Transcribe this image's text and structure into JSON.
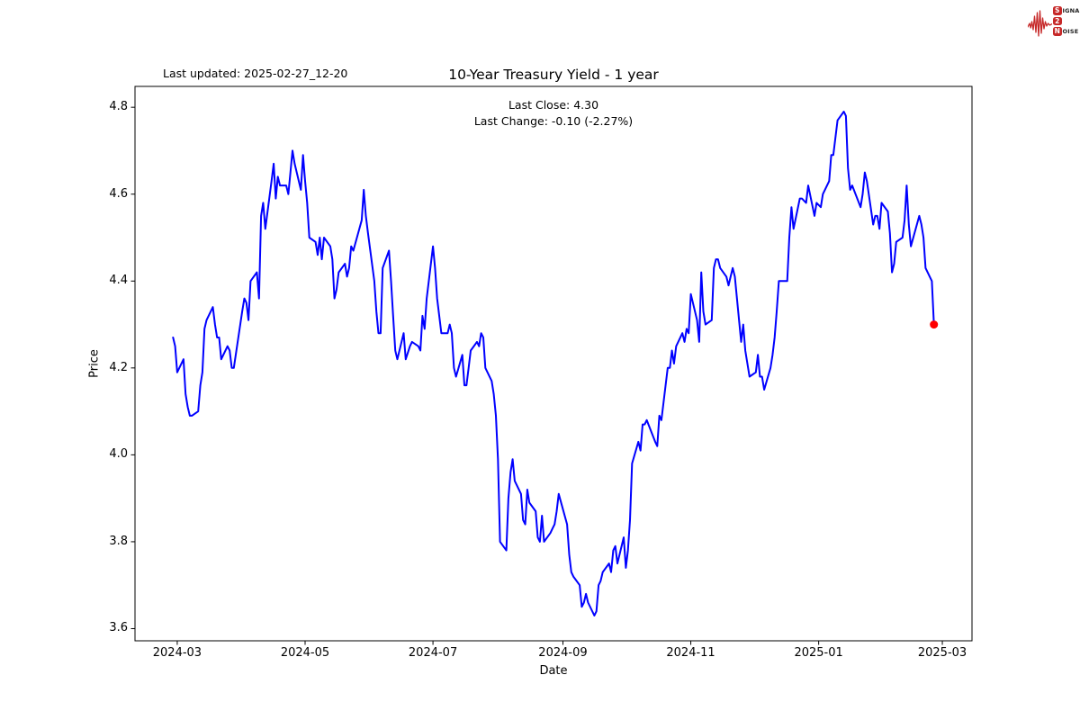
{
  "header": {
    "last_updated": "Last updated: 2025-02-27_12-20",
    "title": "10-Year Treasury Yield - 1 year",
    "subtitle_line1": "Last Close: 4.30",
    "subtitle_line2": "Last Change: -0.10 (-2.27%)"
  },
  "logo": {
    "word1_initial": "S",
    "word1_rest": "IGNAL",
    "word2": "2",
    "word3_initial": "N",
    "word3_rest": "OISE",
    "accent_color": "#c62828"
  },
  "chart_data": {
    "type": "line",
    "title": "10-Year Treasury Yield - 1 year",
    "xlabel": "Date",
    "ylabel": "Price",
    "grid": false,
    "legend": null,
    "line_color": "#0000ff",
    "line_width": 2,
    "last_point_color": "#ff0000",
    "last_close": 4.3,
    "last_change": "-0.10 (-2.27%)",
    "ylim": [
      3.57,
      4.85
    ],
    "xlim": [
      "2024-02-10",
      "2025-03-15"
    ],
    "yticks": [
      3.6,
      3.8,
      4.0,
      4.2,
      4.4,
      4.6,
      4.8
    ],
    "ytick_labels": [
      "3.6",
      "3.8",
      "4.0",
      "4.2",
      "4.4",
      "4.6",
      "4.8"
    ],
    "xticks": [
      {
        "label": "2024-03",
        "date": "2024-03-01"
      },
      {
        "label": "2024-05",
        "date": "2024-05-01"
      },
      {
        "label": "2024-07",
        "date": "2024-07-01"
      },
      {
        "label": "2024-09",
        "date": "2024-09-01"
      },
      {
        "label": "2024-11",
        "date": "2024-11-01"
      },
      {
        "label": "2025-01",
        "date": "2025-01-01"
      },
      {
        "label": "2025-03",
        "date": "2025-03-01"
      }
    ],
    "points": [
      [
        "2024-02-28",
        4.27
      ],
      [
        "2024-02-29",
        4.25
      ],
      [
        "2024-03-01",
        4.19
      ],
      [
        "2024-03-04",
        4.22
      ],
      [
        "2024-03-05",
        4.14
      ],
      [
        "2024-03-06",
        4.11
      ],
      [
        "2024-03-07",
        4.09
      ],
      [
        "2024-03-08",
        4.09
      ],
      [
        "2024-03-11",
        4.1
      ],
      [
        "2024-03-12",
        4.16
      ],
      [
        "2024-03-13",
        4.19
      ],
      [
        "2024-03-14",
        4.29
      ],
      [
        "2024-03-15",
        4.31
      ],
      [
        "2024-03-18",
        4.34
      ],
      [
        "2024-03-19",
        4.3
      ],
      [
        "2024-03-20",
        4.27
      ],
      [
        "2024-03-21",
        4.27
      ],
      [
        "2024-03-22",
        4.22
      ],
      [
        "2024-03-25",
        4.25
      ],
      [
        "2024-03-26",
        4.24
      ],
      [
        "2024-03-27",
        4.2
      ],
      [
        "2024-03-28",
        4.2
      ],
      [
        "2024-04-01",
        4.33
      ],
      [
        "2024-04-02",
        4.36
      ],
      [
        "2024-04-03",
        4.35
      ],
      [
        "2024-04-04",
        4.31
      ],
      [
        "2024-04-05",
        4.4
      ],
      [
        "2024-04-08",
        4.42
      ],
      [
        "2024-04-09",
        4.36
      ],
      [
        "2024-04-10",
        4.55
      ],
      [
        "2024-04-11",
        4.58
      ],
      [
        "2024-04-12",
        4.52
      ],
      [
        "2024-04-15",
        4.63
      ],
      [
        "2024-04-16",
        4.67
      ],
      [
        "2024-04-17",
        4.59
      ],
      [
        "2024-04-18",
        4.64
      ],
      [
        "2024-04-19",
        4.62
      ],
      [
        "2024-04-22",
        4.62
      ],
      [
        "2024-04-23",
        4.6
      ],
      [
        "2024-04-24",
        4.65
      ],
      [
        "2024-04-25",
        4.7
      ],
      [
        "2024-04-26",
        4.67
      ],
      [
        "2024-04-29",
        4.61
      ],
      [
        "2024-04-30",
        4.69
      ],
      [
        "2024-05-01",
        4.63
      ],
      [
        "2024-05-02",
        4.58
      ],
      [
        "2024-05-03",
        4.5
      ],
      [
        "2024-05-06",
        4.49
      ],
      [
        "2024-05-07",
        4.46
      ],
      [
        "2024-05-08",
        4.5
      ],
      [
        "2024-05-09",
        4.45
      ],
      [
        "2024-05-10",
        4.5
      ],
      [
        "2024-05-13",
        4.48
      ],
      [
        "2024-05-14",
        4.45
      ],
      [
        "2024-05-15",
        4.36
      ],
      [
        "2024-05-16",
        4.38
      ],
      [
        "2024-05-17",
        4.42
      ],
      [
        "2024-05-20",
        4.44
      ],
      [
        "2024-05-21",
        4.41
      ],
      [
        "2024-05-22",
        4.43
      ],
      [
        "2024-05-23",
        4.48
      ],
      [
        "2024-05-24",
        4.47
      ],
      [
        "2024-05-28",
        4.54
      ],
      [
        "2024-05-29",
        4.61
      ],
      [
        "2024-05-30",
        4.55
      ],
      [
        "2024-05-31",
        4.51
      ],
      [
        "2024-06-03",
        4.4
      ],
      [
        "2024-06-04",
        4.33
      ],
      [
        "2024-06-05",
        4.28
      ],
      [
        "2024-06-06",
        4.28
      ],
      [
        "2024-06-07",
        4.43
      ],
      [
        "2024-06-10",
        4.47
      ],
      [
        "2024-06-11",
        4.4
      ],
      [
        "2024-06-12",
        4.32
      ],
      [
        "2024-06-13",
        4.24
      ],
      [
        "2024-06-14",
        4.22
      ],
      [
        "2024-06-17",
        4.28
      ],
      [
        "2024-06-18",
        4.22
      ],
      [
        "2024-06-20",
        4.25
      ],
      [
        "2024-06-21",
        4.26
      ],
      [
        "2024-06-24",
        4.25
      ],
      [
        "2024-06-25",
        4.24
      ],
      [
        "2024-06-26",
        4.32
      ],
      [
        "2024-06-27",
        4.29
      ],
      [
        "2024-06-28",
        4.36
      ],
      [
        "2024-07-01",
        4.48
      ],
      [
        "2024-07-02",
        4.43
      ],
      [
        "2024-07-03",
        4.36
      ],
      [
        "2024-07-05",
        4.28
      ],
      [
        "2024-07-08",
        4.28
      ],
      [
        "2024-07-09",
        4.3
      ],
      [
        "2024-07-10",
        4.28
      ],
      [
        "2024-07-11",
        4.2
      ],
      [
        "2024-07-12",
        4.18
      ],
      [
        "2024-07-15",
        4.23
      ],
      [
        "2024-07-16",
        4.16
      ],
      [
        "2024-07-17",
        4.16
      ],
      [
        "2024-07-18",
        4.2
      ],
      [
        "2024-07-19",
        4.24
      ],
      [
        "2024-07-22",
        4.26
      ],
      [
        "2024-07-23",
        4.25
      ],
      [
        "2024-07-24",
        4.28
      ],
      [
        "2024-07-25",
        4.27
      ],
      [
        "2024-07-26",
        4.2
      ],
      [
        "2024-07-29",
        4.17
      ],
      [
        "2024-07-30",
        4.14
      ],
      [
        "2024-07-31",
        4.09
      ],
      [
        "2024-08-01",
        3.99
      ],
      [
        "2024-08-02",
        3.8
      ],
      [
        "2024-08-05",
        3.78
      ],
      [
        "2024-08-06",
        3.9
      ],
      [
        "2024-08-07",
        3.96
      ],
      [
        "2024-08-08",
        3.99
      ],
      [
        "2024-08-09",
        3.94
      ],
      [
        "2024-08-12",
        3.91
      ],
      [
        "2024-08-13",
        3.85
      ],
      [
        "2024-08-14",
        3.84
      ],
      [
        "2024-08-15",
        3.92
      ],
      [
        "2024-08-16",
        3.89
      ],
      [
        "2024-08-19",
        3.87
      ],
      [
        "2024-08-20",
        3.81
      ],
      [
        "2024-08-21",
        3.8
      ],
      [
        "2024-08-22",
        3.86
      ],
      [
        "2024-08-23",
        3.8
      ],
      [
        "2024-08-26",
        3.82
      ],
      [
        "2024-08-27",
        3.83
      ],
      [
        "2024-08-28",
        3.84
      ],
      [
        "2024-08-29",
        3.87
      ],
      [
        "2024-08-30",
        3.91
      ],
      [
        "2024-09-03",
        3.84
      ],
      [
        "2024-09-04",
        3.77
      ],
      [
        "2024-09-05",
        3.73
      ],
      [
        "2024-09-06",
        3.72
      ],
      [
        "2024-09-09",
        3.7
      ],
      [
        "2024-09-10",
        3.65
      ],
      [
        "2024-09-11",
        3.66
      ],
      [
        "2024-09-12",
        3.68
      ],
      [
        "2024-09-13",
        3.66
      ],
      [
        "2024-09-16",
        3.63
      ],
      [
        "2024-09-17",
        3.64
      ],
      [
        "2024-09-18",
        3.7
      ],
      [
        "2024-09-19",
        3.71
      ],
      [
        "2024-09-20",
        3.73
      ],
      [
        "2024-09-23",
        3.75
      ],
      [
        "2024-09-24",
        3.73
      ],
      [
        "2024-09-25",
        3.78
      ],
      [
        "2024-09-26",
        3.79
      ],
      [
        "2024-09-27",
        3.75
      ],
      [
        "2024-09-30",
        3.81
      ],
      [
        "2024-10-01",
        3.74
      ],
      [
        "2024-10-02",
        3.78
      ],
      [
        "2024-10-03",
        3.85
      ],
      [
        "2024-10-04",
        3.98
      ],
      [
        "2024-10-07",
        4.03
      ],
      [
        "2024-10-08",
        4.01
      ],
      [
        "2024-10-09",
        4.07
      ],
      [
        "2024-10-10",
        4.07
      ],
      [
        "2024-10-11",
        4.08
      ],
      [
        "2024-10-15",
        4.03
      ],
      [
        "2024-10-16",
        4.02
      ],
      [
        "2024-10-17",
        4.09
      ],
      [
        "2024-10-18",
        4.08
      ],
      [
        "2024-10-21",
        4.2
      ],
      [
        "2024-10-22",
        4.2
      ],
      [
        "2024-10-23",
        4.24
      ],
      [
        "2024-10-24",
        4.21
      ],
      [
        "2024-10-25",
        4.25
      ],
      [
        "2024-10-28",
        4.28
      ],
      [
        "2024-10-29",
        4.26
      ],
      [
        "2024-10-30",
        4.29
      ],
      [
        "2024-10-31",
        4.28
      ],
      [
        "2024-11-01",
        4.37
      ],
      [
        "2024-11-04",
        4.31
      ],
      [
        "2024-11-05",
        4.26
      ],
      [
        "2024-11-06",
        4.42
      ],
      [
        "2024-11-07",
        4.33
      ],
      [
        "2024-11-08",
        4.3
      ],
      [
        "2024-11-11",
        4.31
      ],
      [
        "2024-11-12",
        4.43
      ],
      [
        "2024-11-13",
        4.45
      ],
      [
        "2024-11-14",
        4.45
      ],
      [
        "2024-11-15",
        4.43
      ],
      [
        "2024-11-18",
        4.41
      ],
      [
        "2024-11-19",
        4.39
      ],
      [
        "2024-11-20",
        4.41
      ],
      [
        "2024-11-21",
        4.43
      ],
      [
        "2024-11-22",
        4.41
      ],
      [
        "2024-11-25",
        4.26
      ],
      [
        "2024-11-26",
        4.3
      ],
      [
        "2024-11-27",
        4.24
      ],
      [
        "2024-11-29",
        4.18
      ],
      [
        "2024-12-02",
        4.19
      ],
      [
        "2024-12-03",
        4.23
      ],
      [
        "2024-12-04",
        4.18
      ],
      [
        "2024-12-05",
        4.18
      ],
      [
        "2024-12-06",
        4.15
      ],
      [
        "2024-12-09",
        4.2
      ],
      [
        "2024-12-10",
        4.23
      ],
      [
        "2024-12-11",
        4.27
      ],
      [
        "2024-12-12",
        4.33
      ],
      [
        "2024-12-13",
        4.4
      ],
      [
        "2024-12-16",
        4.4
      ],
      [
        "2024-12-17",
        4.4
      ],
      [
        "2024-12-18",
        4.5
      ],
      [
        "2024-12-19",
        4.57
      ],
      [
        "2024-12-20",
        4.52
      ],
      [
        "2024-12-23",
        4.59
      ],
      [
        "2024-12-24",
        4.59
      ],
      [
        "2024-12-26",
        4.58
      ],
      [
        "2024-12-27",
        4.62
      ],
      [
        "2024-12-30",
        4.55
      ],
      [
        "2024-12-31",
        4.58
      ],
      [
        "2025-01-02",
        4.57
      ],
      [
        "2025-01-03",
        4.6
      ],
      [
        "2025-01-06",
        4.63
      ],
      [
        "2025-01-07",
        4.69
      ],
      [
        "2025-01-08",
        4.69
      ],
      [
        "2025-01-10",
        4.77
      ],
      [
        "2025-01-13",
        4.79
      ],
      [
        "2025-01-14",
        4.78
      ],
      [
        "2025-01-15",
        4.66
      ],
      [
        "2025-01-16",
        4.61
      ],
      [
        "2025-01-17",
        4.62
      ],
      [
        "2025-01-21",
        4.57
      ],
      [
        "2025-01-22",
        4.6
      ],
      [
        "2025-01-23",
        4.65
      ],
      [
        "2025-01-24",
        4.63
      ],
      [
        "2025-01-27",
        4.53
      ],
      [
        "2025-01-28",
        4.55
      ],
      [
        "2025-01-29",
        4.55
      ],
      [
        "2025-01-30",
        4.52
      ],
      [
        "2025-01-31",
        4.58
      ],
      [
        "2025-02-03",
        4.56
      ],
      [
        "2025-02-04",
        4.51
      ],
      [
        "2025-02-05",
        4.42
      ],
      [
        "2025-02-06",
        4.44
      ],
      [
        "2025-02-07",
        4.49
      ],
      [
        "2025-02-10",
        4.5
      ],
      [
        "2025-02-11",
        4.54
      ],
      [
        "2025-02-12",
        4.62
      ],
      [
        "2025-02-13",
        4.53
      ],
      [
        "2025-02-14",
        4.48
      ],
      [
        "2025-02-18",
        4.55
      ],
      [
        "2025-02-19",
        4.53
      ],
      [
        "2025-02-20",
        4.5
      ],
      [
        "2025-02-21",
        4.43
      ],
      [
        "2025-02-24",
        4.4
      ],
      [
        "2025-02-25",
        4.3
      ]
    ]
  }
}
